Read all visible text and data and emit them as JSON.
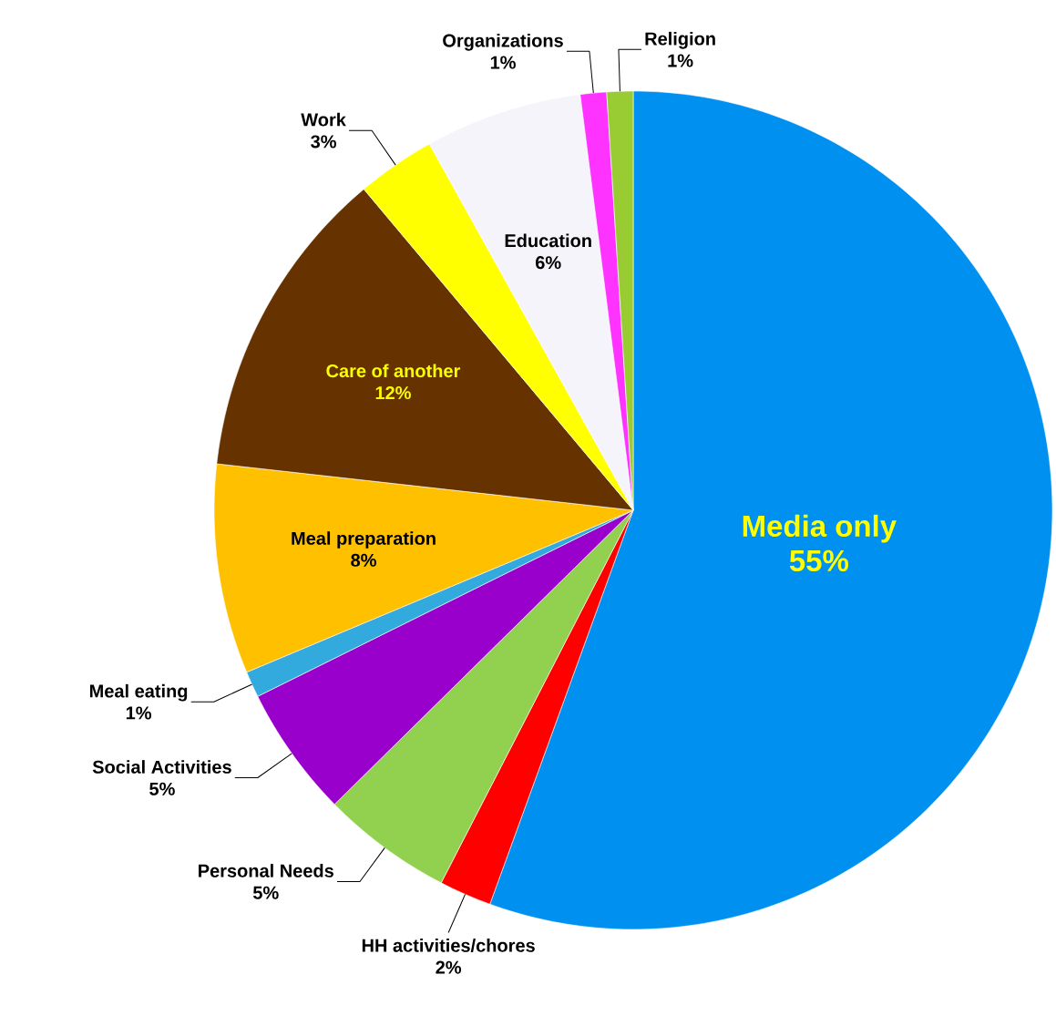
{
  "chart_data": {
    "type": "pie",
    "categories": [
      "Media only",
      "HH activities/chores",
      "Personal Needs",
      "Social Activities",
      "Meal eating",
      "Meal preparation",
      "Care of another",
      "Work",
      "Education",
      "Organizations",
      "Religion"
    ],
    "values": [
      55,
      2,
      5,
      5,
      1,
      8,
      12,
      3,
      6,
      1,
      1
    ],
    "value_labels": [
      "55%",
      "2%",
      "5%",
      "5%",
      "1%",
      "8%",
      "12%",
      "3%",
      "6%",
      "1%",
      "1%"
    ],
    "colors": [
      "#0090f0",
      "#ff0000",
      "#92d050",
      "#9900cc",
      "#33aadd",
      "#ffc000",
      "#663300",
      "#ffff00",
      "#f4f4fa",
      "#ff33ff",
      "#99cc33"
    ]
  }
}
